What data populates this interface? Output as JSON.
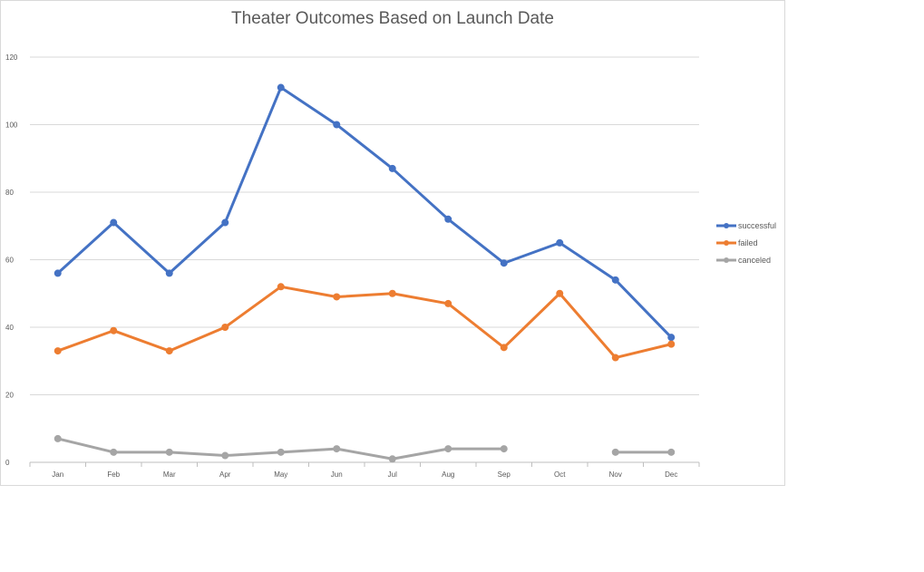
{
  "chart_data": {
    "type": "line",
    "title": "Theater Outcomes Based on Launch Date",
    "xlabel": "",
    "ylabel": "",
    "categories": [
      "Jan",
      "Feb",
      "Mar",
      "Apr",
      "May",
      "Jun",
      "Jul",
      "Aug",
      "Sep",
      "Oct",
      "Nov",
      "Dec"
    ],
    "y_ticks": [
      "0",
      "20",
      "40",
      "60",
      "80",
      "100",
      "120"
    ],
    "ylim": [
      0,
      120
    ],
    "grid": true,
    "legend_position": "right",
    "series": [
      {
        "name": "successful",
        "color": "#4472C4",
        "values": [
          56,
          71,
          56,
          71,
          111,
          100,
          87,
          72,
          59,
          65,
          54,
          37
        ]
      },
      {
        "name": "failed",
        "color": "#ED7D31",
        "values": [
          33,
          39,
          33,
          40,
          52,
          49,
          50,
          47,
          34,
          50,
          31,
          35
        ]
      },
      {
        "name": "canceled",
        "color": "#A5A5A5",
        "values": [
          7,
          3,
          3,
          2,
          3,
          4,
          1,
          4,
          4,
          null,
          3,
          3
        ]
      }
    ]
  }
}
